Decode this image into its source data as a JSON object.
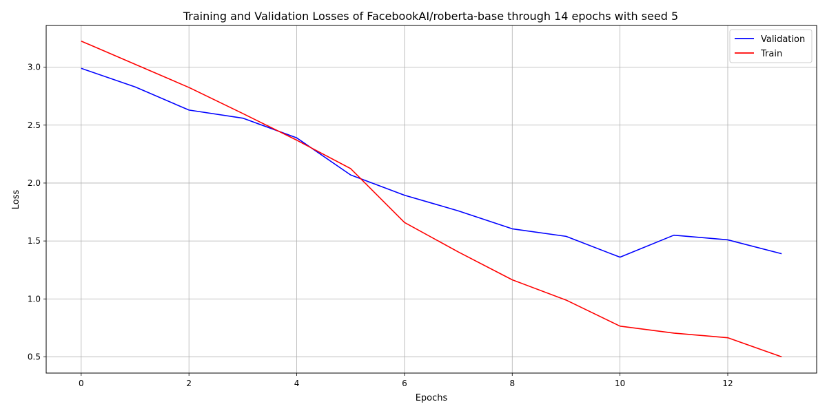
{
  "chart_data": {
    "type": "line",
    "title": "Training and Validation Losses of FacebookAI/roberta-base through 14 epochs with seed 5",
    "xlabel": "Epochs",
    "ylabel": "Loss",
    "x": [
      0,
      1,
      2,
      3,
      4,
      5,
      6,
      7,
      8,
      9,
      10,
      11,
      12,
      13
    ],
    "xlim": [
      -0.65,
      13.65
    ],
    "ylim": [
      0.36,
      3.36
    ],
    "xticks": [
      0,
      2,
      4,
      6,
      8,
      10,
      12
    ],
    "yticks": [
      0.5,
      1.0,
      1.5,
      2.0,
      2.5,
      3.0
    ],
    "xtick_labels": [
      "0",
      "2",
      "4",
      "6",
      "8",
      "10",
      "12"
    ],
    "ytick_labels": [
      "0.5",
      "1.0",
      "1.5",
      "2.0",
      "2.5",
      "3.0"
    ],
    "grid": true,
    "legend_position": "top-right",
    "series": [
      {
        "name": "Validation",
        "color": "#0000ff",
        "values": [
          2.99,
          2.83,
          2.63,
          2.56,
          2.39,
          2.07,
          1.895,
          1.76,
          1.605,
          1.54,
          1.36,
          1.55,
          1.51,
          1.39
        ]
      },
      {
        "name": "Train",
        "color": "#ff0000",
        "values": [
          3.225,
          3.025,
          2.825,
          2.6,
          2.37,
          2.125,
          1.66,
          1.405,
          1.165,
          0.99,
          0.765,
          0.705,
          0.665,
          0.5
        ]
      }
    ]
  }
}
